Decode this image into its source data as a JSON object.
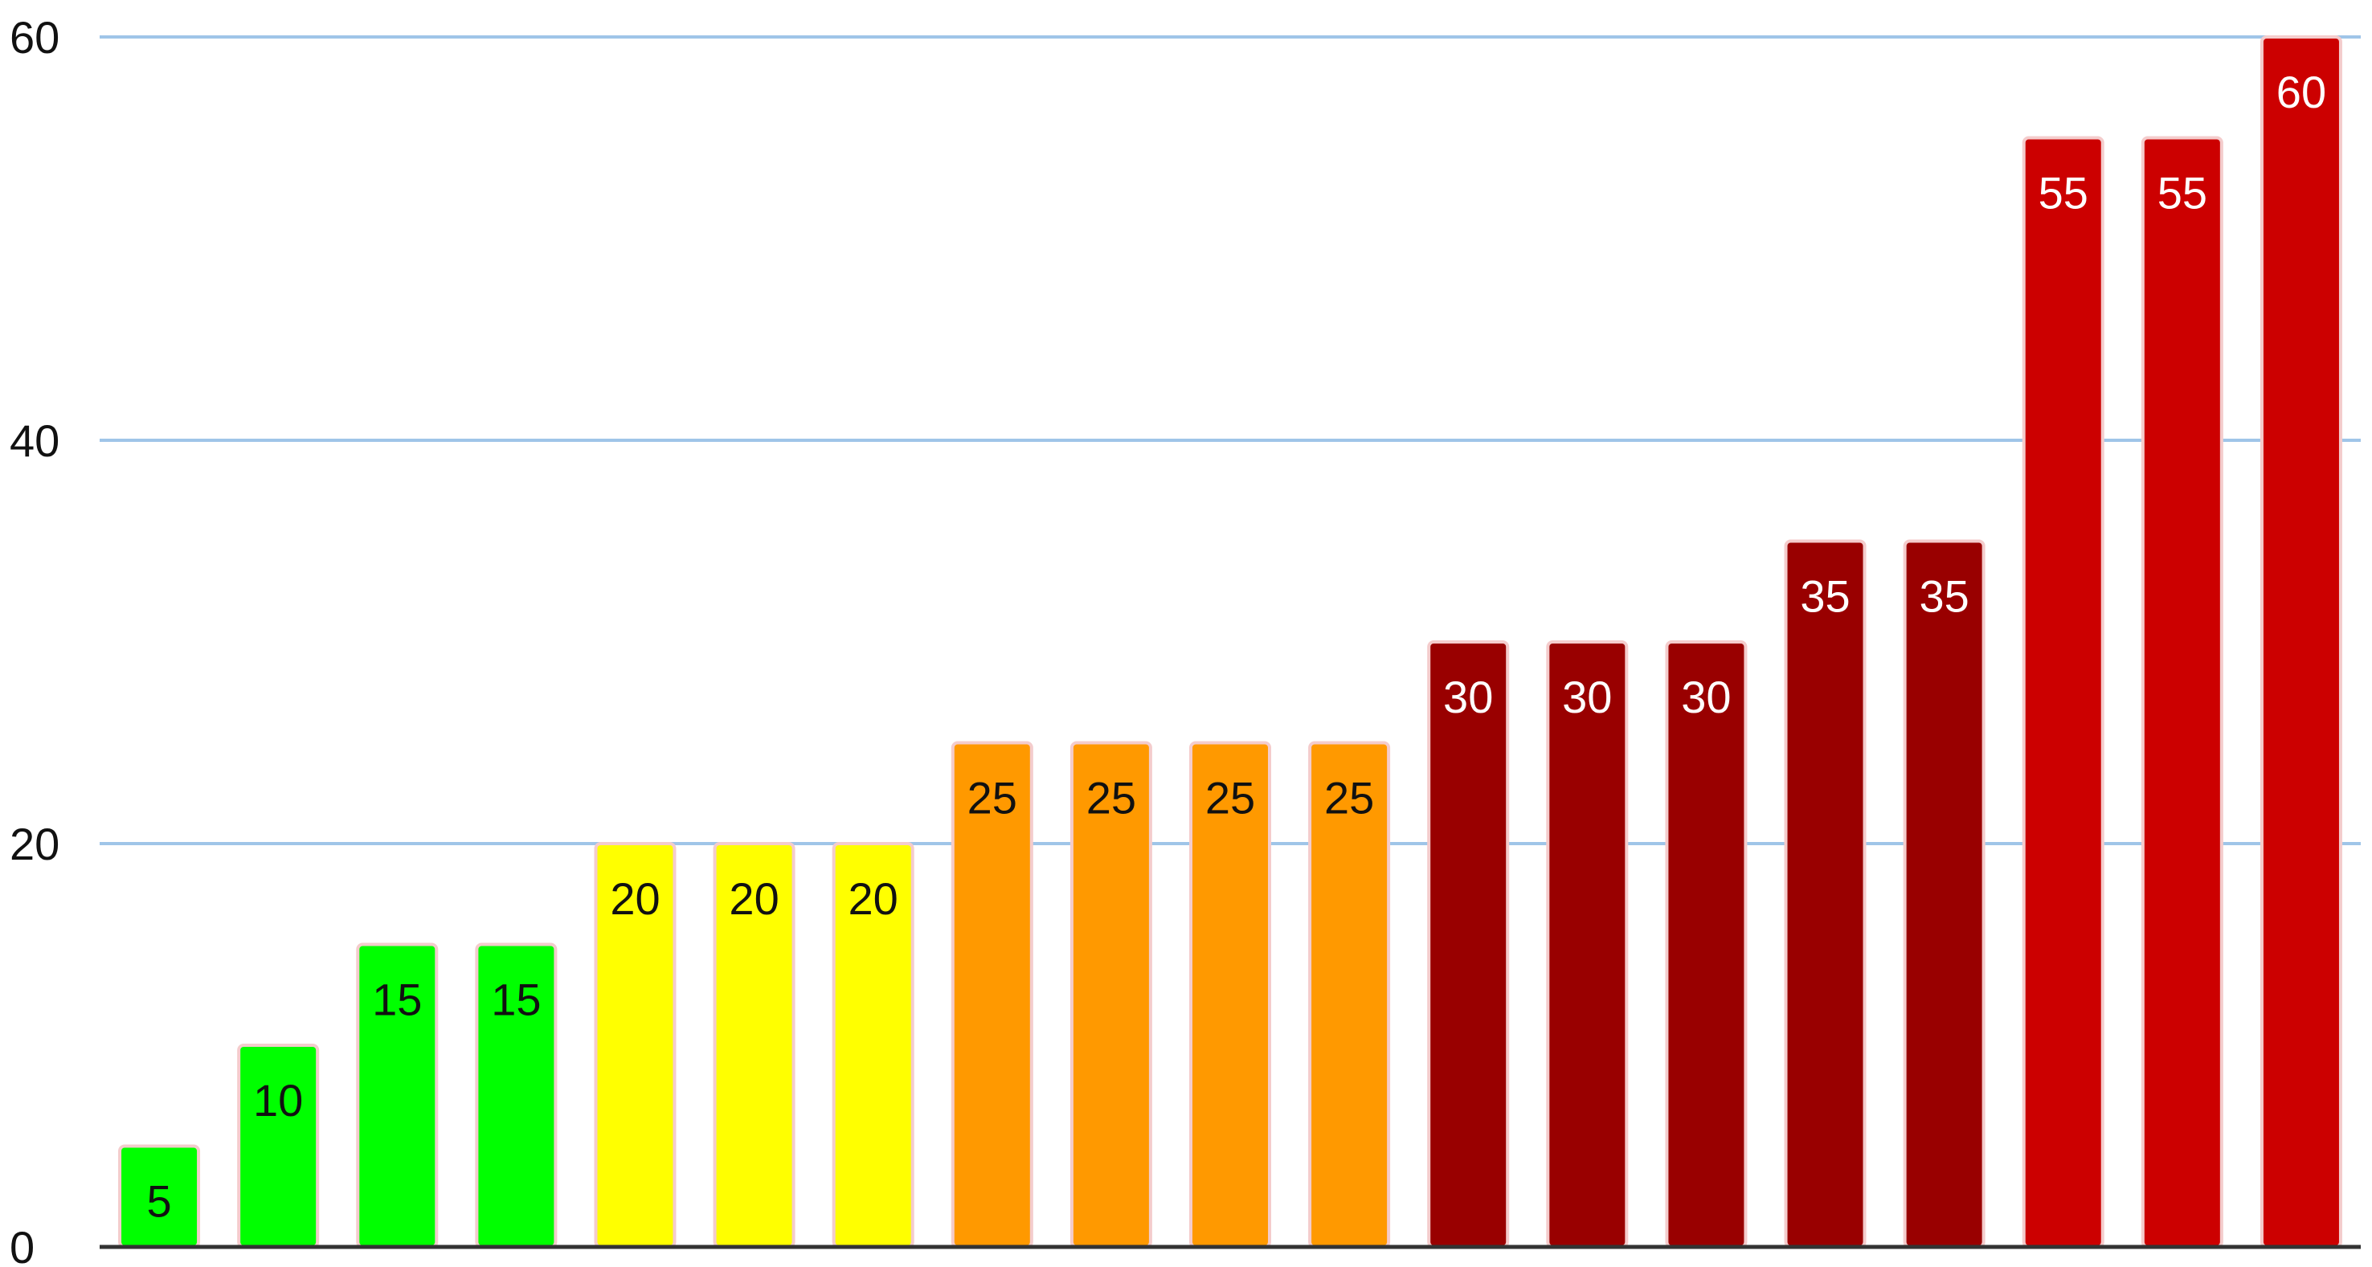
{
  "chart_data": {
    "type": "bar",
    "categories": [
      "",
      "",
      "",
      "",
      "",
      "",
      "",
      "",
      "",
      "",
      "",
      "",
      "",
      "",
      "",
      "",
      "",
      "",
      ""
    ],
    "values": [
      5,
      10,
      15,
      15,
      20,
      20,
      20,
      25,
      25,
      25,
      25,
      30,
      30,
      30,
      35,
      35,
      55,
      55,
      60
    ],
    "bar_colors": [
      "#00ff00",
      "#00ff00",
      "#00ff00",
      "#00ff00",
      "#ffff00",
      "#ffff00",
      "#ffff00",
      "#ff9900",
      "#ff9900",
      "#ff9900",
      "#ff9900",
      "#990000",
      "#990000",
      "#990000",
      "#990000",
      "#990000",
      "#cc0000",
      "#cc0000",
      "#cc0000"
    ],
    "label_colors": [
      "#111111",
      "#111111",
      "#111111",
      "#111111",
      "#111111",
      "#111111",
      "#111111",
      "#111111",
      "#111111",
      "#111111",
      "#111111",
      "#ffffff",
      "#ffffff",
      "#ffffff",
      "#ffffff",
      "#ffffff",
      "#ffffff",
      "#ffffff",
      "#ffffff"
    ],
    "ylim": [
      0,
      60
    ],
    "yticks": [
      0,
      20,
      40,
      60
    ],
    "ytick_labels": [
      "0",
      "20",
      "40",
      "60"
    ],
    "title": "",
    "xlabel": "",
    "ylabel": "",
    "grid": true,
    "legend": "none",
    "data_labels": true,
    "colors": {
      "gridline": "#9fc5e8",
      "baseline": "#333333",
      "bar_outline": "#f4cccc"
    }
  }
}
